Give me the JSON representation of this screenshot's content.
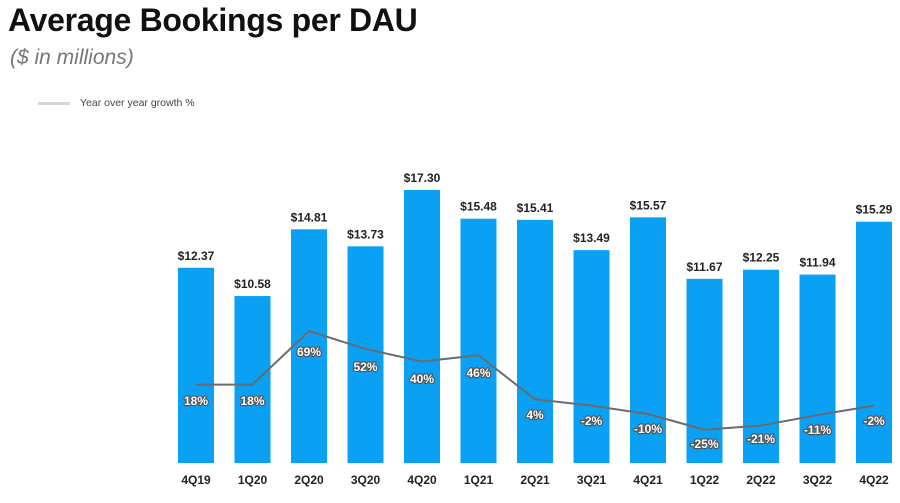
{
  "title": "Average Bookings per DAU",
  "subtitle": "($ in millions)",
  "legend": {
    "line_label": "Year over year growth %"
  },
  "colors": {
    "bar": "#0aa1f5",
    "line": "#6b6b6b",
    "legend_swatch": "#d5d5d5",
    "text": "#222222"
  },
  "chart_data": {
    "type": "bar",
    "title": "Average Bookings per DAU",
    "subtitle": "($ in millions)",
    "xlabel": "",
    "ylabel": "",
    "ylim": [
      0,
      17.3
    ],
    "grid": false,
    "legend_position": "top-left",
    "categories": [
      "4Q19",
      "1Q20",
      "2Q20",
      "3Q20",
      "4Q20",
      "1Q21",
      "2Q21",
      "3Q21",
      "4Q21",
      "1Q22",
      "2Q22",
      "3Q22",
      "4Q22"
    ],
    "series": [
      {
        "name": "Average Bookings per DAU",
        "type": "bar",
        "values": [
          12.37,
          10.58,
          14.81,
          13.73,
          17.3,
          15.48,
          15.41,
          13.49,
          15.57,
          11.67,
          12.25,
          11.94,
          15.29
        ],
        "labels": [
          "$12.37",
          "$10.58",
          "$14.81",
          "$13.73",
          "$17.30",
          "$15.48",
          "$15.41",
          "$13.49",
          "$15.57",
          "$11.67",
          "$12.25",
          "$11.94",
          "$15.29"
        ]
      },
      {
        "name": "Year over year growth %",
        "type": "line",
        "values": [
          18,
          18,
          69,
          52,
          40,
          46,
          4,
          -2,
          -10,
          -25,
          -21,
          -11,
          -2
        ],
        "labels": [
          "18%",
          "18%",
          "69%",
          "52%",
          "40%",
          "46%",
          "4%",
          "-2%",
          "-10%",
          "-25%",
          "-21%",
          "-11%",
          "-2%"
        ]
      }
    ]
  }
}
